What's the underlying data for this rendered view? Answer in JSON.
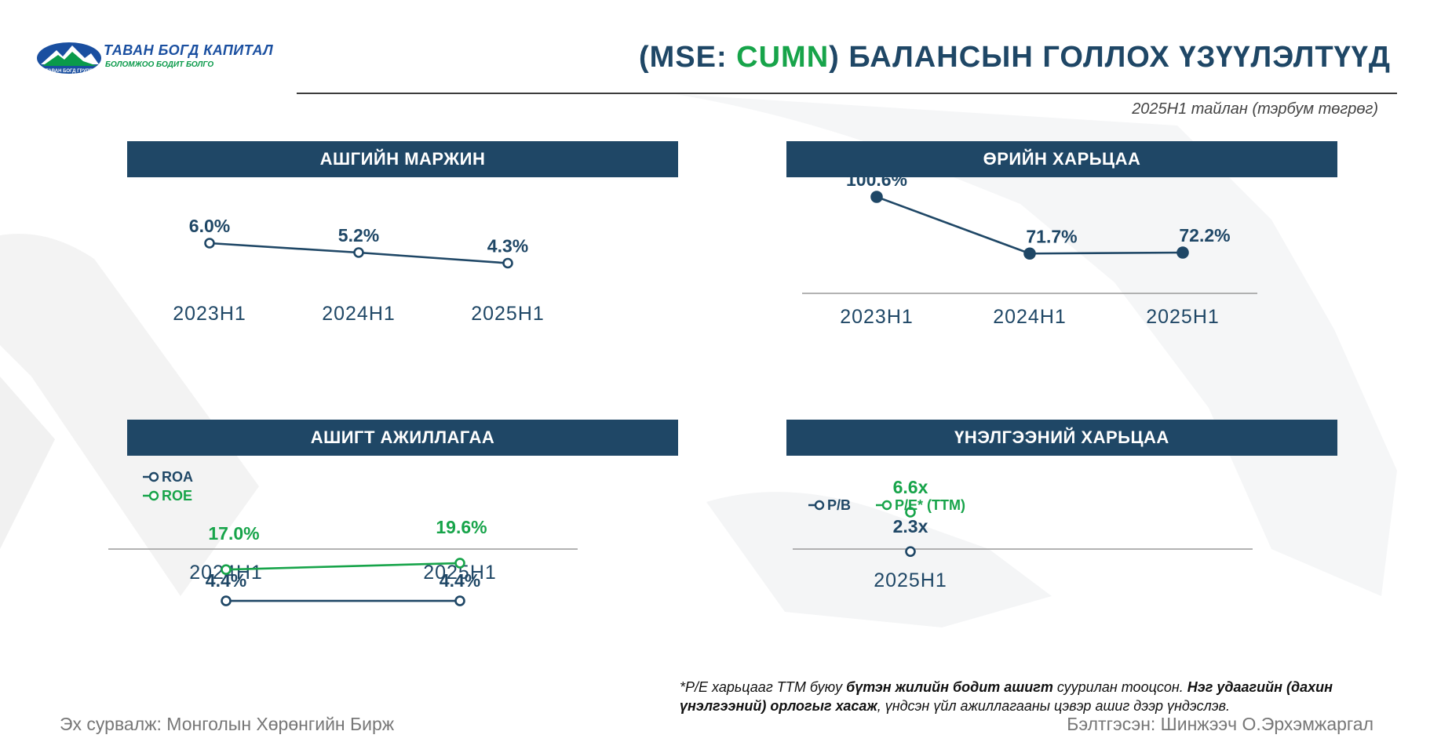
{
  "logo": {
    "name": "ТАВАН БОГД КАПИТАЛ",
    "slogan": "БОЛОМЖОО БОДИТ БОЛГО",
    "mark_text": "ТАВАН БОГД ГРУПП"
  },
  "header": {
    "title_pre": "(MSE: ",
    "title_ticker": "CUMN",
    "title_post": ") БАЛАНСЫН ГОЛЛОХ ҮЗҮҮЛЭЛТҮҮД",
    "subtitle": "2025H1 тайлан (тэрбум төгрөг)"
  },
  "colors": {
    "navy": "#1f4766",
    "green": "#17a44a",
    "grid": "#9a9a9a"
  },
  "panels": {
    "gross_margin": {
      "title": "АШГИЙН МАРЖИН"
    },
    "debt_ratio": {
      "title": "ӨРИЙН ХАРЬЦАА"
    },
    "profitability": {
      "title": "АШИГТ АЖИЛЛАГАА"
    },
    "valuation": {
      "title": "ҮНЭЛГЭЭНИЙ ХАРЬЦАА"
    }
  },
  "chart_data": [
    {
      "id": "gross_margin",
      "type": "line",
      "title": "АШГИЙН МАРЖИН",
      "categories": [
        "2023H1",
        "2024H1",
        "2025H1"
      ],
      "series": [
        {
          "values": [
            6.0,
            5.2,
            4.3
          ],
          "labels": [
            "6.0%",
            "5.2%",
            "4.3%"
          ],
          "color": "#1f4766",
          "marker": "hollow"
        }
      ],
      "ylim": [
        0,
        10
      ]
    },
    {
      "id": "debt_ratio",
      "type": "line",
      "title": "ӨРИЙН ХАРЬЦАА",
      "categories": [
        "2023H1",
        "2024H1",
        "2025H1"
      ],
      "series": [
        {
          "values": [
            100.6,
            71.7,
            72.2
          ],
          "labels": [
            "100.6%",
            "71.7%",
            "72.2%"
          ],
          "color": "#1f4766",
          "marker": "filled"
        }
      ],
      "ylim": [
        45,
        105
      ]
    },
    {
      "id": "profitability",
      "type": "line",
      "title": "АШИГТ АЖИЛЛАГАА",
      "categories": [
        "2024H1",
        "2025H1"
      ],
      "series": [
        {
          "name": "ROA",
          "values": [
            4.4,
            4.4
          ],
          "labels": [
            "4.4%",
            "4.4%"
          ],
          "color": "#1f4766",
          "marker": "hollow"
        },
        {
          "name": "ROE",
          "values": [
            17.0,
            19.6
          ],
          "labels": [
            "17.0%",
            "19.6%"
          ],
          "color": "#17a44a",
          "marker": "hollow"
        }
      ],
      "ylim": [
        0,
        60
      ],
      "legend": "top-left"
    },
    {
      "id": "valuation",
      "type": "scatter",
      "title": "ҮНЭЛГЭЭНИЙ ХАРЬЦАА",
      "categories": [
        "2025H1"
      ],
      "series": [
        {
          "name": "P/B",
          "values": [
            2.3
          ],
          "labels": [
            "2.3x"
          ],
          "color": "#1f4766",
          "marker": "hollow"
        },
        {
          "name": "P/E* (TTM)",
          "values": [
            6.6
          ],
          "labels": [
            "6.6x"
          ],
          "color": "#17a44a",
          "marker": "hollow"
        }
      ],
      "ylim": [
        0,
        12
      ],
      "legend": "top-left"
    }
  ],
  "footnote": {
    "p1": "*P/E харьцааг ТТМ буюу ",
    "b1": "бүтэн жилийн бодит ашигт",
    "p2": " суурилан тооцсон. ",
    "b2": "Нэг удаагийн (дахин үнэлгээний) орлогыг хасаж",
    "p3": ", үндсэн үйл ажиллагааны цэвэр ашиг дээр үндэслэв."
  },
  "source": "Эх сурвалж: Монголын Хөрөнгийн Бирж",
  "author": "Бэлтгэсэн: Шинжээч О.Эрхэмжаргал"
}
